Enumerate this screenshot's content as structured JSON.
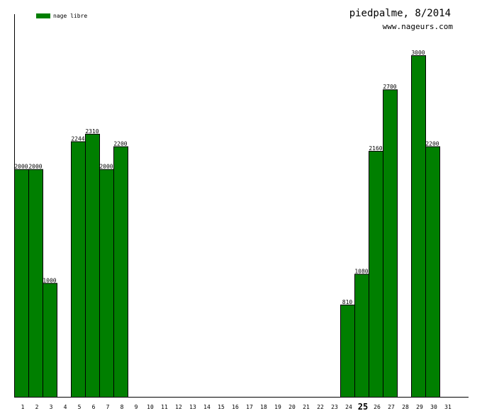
{
  "header": {
    "title": "piedpalme, 8/2014",
    "site": "www.nageurs.com"
  },
  "legend": {
    "label": "nage libre",
    "color": "#007f00"
  },
  "chart_data": {
    "type": "bar",
    "title": "piedpalme, 8/2014",
    "xlabel": "",
    "ylabel": "",
    "ylim": [
      0,
      3000
    ],
    "grid": false,
    "legend_position": "top-left",
    "highlight_category": "25",
    "categories": [
      "1",
      "2",
      "3",
      "4",
      "5",
      "6",
      "7",
      "8",
      "9",
      "10",
      "11",
      "12",
      "13",
      "14",
      "15",
      "16",
      "17",
      "18",
      "19",
      "20",
      "21",
      "22",
      "23",
      "24",
      "25",
      "26",
      "27",
      "28",
      "29",
      "30",
      "31"
    ],
    "series": [
      {
        "name": "nage libre",
        "color": "#007f00",
        "values": [
          2000,
          2000,
          1000,
          null,
          2244,
          2310,
          2000,
          2200,
          null,
          null,
          null,
          null,
          null,
          null,
          null,
          null,
          null,
          null,
          null,
          null,
          null,
          null,
          null,
          810,
          1080,
          2160,
          2700,
          null,
          3000,
          2200,
          null
        ]
      }
    ]
  }
}
